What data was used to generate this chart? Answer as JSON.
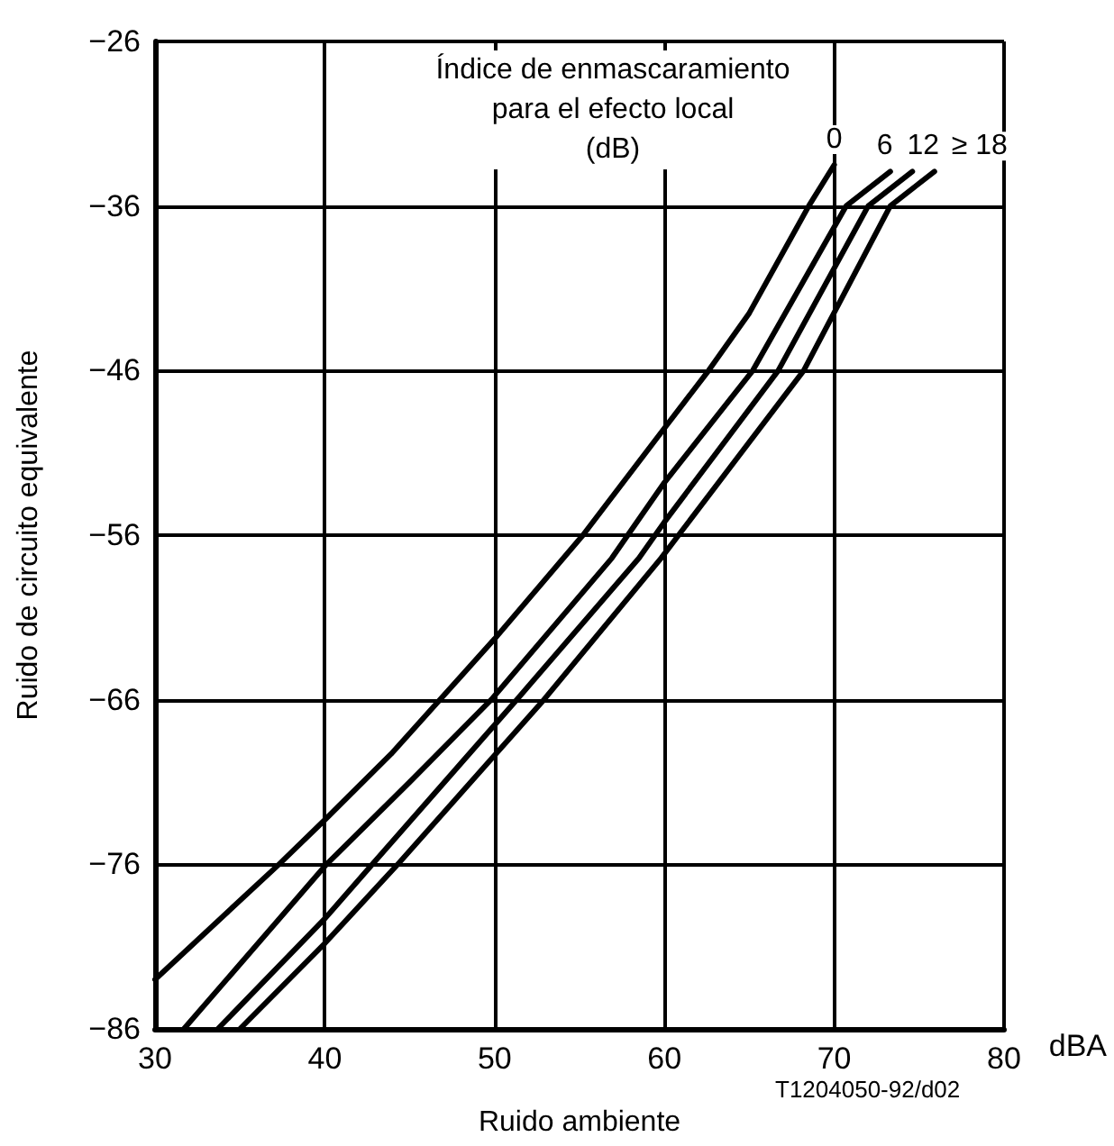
{
  "chart_data": {
    "type": "line",
    "xlabel": "Ruido ambiente",
    "ylabel": "Ruido de circuito equivalente",
    "legend_title": "Índice de enmascaramiento para el efecto local (dB)",
    "annotations": [
      "dBA",
      "T1204050-92/d02"
    ],
    "xlim": [
      30,
      80
    ],
    "xticks": [
      30,
      40,
      50,
      60,
      70,
      80
    ],
    "ylim": [
      -86,
      -26
    ],
    "yticks": [
      {
        "value": -86,
        "label": "−86"
      },
      {
        "value": -76,
        "label": "−76"
      },
      {
        "value": -66,
        "label": "−66"
      },
      {
        "value": -56,
        "label": "−56"
      },
      {
        "value": -46,
        "label": "−46"
      },
      {
        "value": -36,
        "label": "−36"
      },
      {
        "value": -26,
        "label": "−26"
      }
    ],
    "grid": true,
    "legend": false,
    "marker": "none",
    "line_style": "solid",
    "series": [
      {
        "name": "0",
        "color": "#000000",
        "x": [
          30,
          37.3,
          40,
          43.9,
          50,
          55.2,
          60,
          62.6,
          65,
          68.5,
          70
        ],
        "values": [
          -83,
          -76,
          -73.3,
          -69.3,
          -62.3,
          -56,
          -49.5,
          -46,
          -42.5,
          -36,
          -33.5
        ]
      },
      {
        "name": "6",
        "color": "#000000",
        "x": [
          31.7,
          40.1,
          45,
          49.8,
          56.9,
          60,
          65.2,
          70.7,
          73.3
        ],
        "values": [
          -86,
          -76,
          -71,
          -66,
          -57.4,
          -52.8,
          -46,
          -36,
          -33.9
        ]
      },
      {
        "name": "12",
        "color": "#000000",
        "x": [
          33.7,
          40,
          42.8,
          51.3,
          58.5,
          60,
          66.7,
          72,
          74.6
        ],
        "values": [
          -86,
          -79.3,
          -76,
          -66,
          -57.4,
          -55.2,
          -46,
          -36,
          -33.9
        ]
      },
      {
        "name": "≥ 18",
        "color": "#000000",
        "x": [
          35,
          40,
          44.3,
          52.9,
          59.8,
          68.2,
          73.3,
          75.9
        ],
        "values": [
          -86,
          -80.8,
          -76,
          -66,
          -57.4,
          -46,
          -36,
          -33.9
        ]
      }
    ]
  }
}
